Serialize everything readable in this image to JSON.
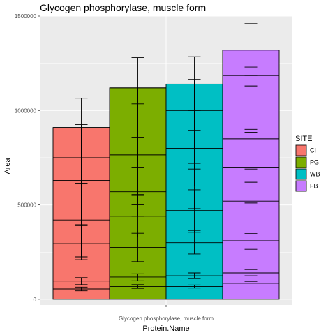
{
  "chart_data": {
    "type": "bar",
    "title": "Glycogen phosphorylase, muscle form",
    "xlabel": "Protein.Name",
    "ylabel": "Area",
    "categories": [
      "Glycogen phosphorylase, muscle form"
    ],
    "ylim": [
      -30000,
      1500000
    ],
    "yticks": [
      0,
      500000,
      1000000,
      1500000
    ],
    "ytick_labels": [
      "0",
      "500000",
      "1000000",
      "1500000"
    ],
    "grid": true,
    "position": "dodge",
    "legend": {
      "title": "SITE",
      "placement": "right"
    },
    "series": [
      {
        "name": "CI",
        "color": "#F8766D",
        "value": 910000,
        "segments": [
          55000,
          97000,
          295000,
          420000,
          630000,
          750000,
          910000
        ],
        "error_bars": [
          [
            45000,
            65000
          ],
          [
            78000,
            115000
          ],
          [
            210000,
            390000
          ],
          [
            225000,
            615000
          ],
          [
            395000,
            870000
          ],
          [
            430000,
            925000
          ],
          [
            750000,
            1065000
          ]
        ]
      },
      {
        "name": "PG",
        "color": "#7CAE00",
        "value": 1120000,
        "segments": [
          68000,
          118000,
          275000,
          440000,
          570000,
          765000,
          955000,
          1120000
        ],
        "error_bars": [
          [
            58000,
            78000
          ],
          [
            98000,
            135000
          ],
          [
            200000,
            350000
          ],
          [
            330000,
            550000
          ],
          [
            440000,
            700000
          ],
          [
            500000,
            1035000
          ],
          [
            555000,
            1125000
          ],
          [
            855000,
            1280000
          ]
        ]
      },
      {
        "name": "WB",
        "color": "#00BFC4",
        "value": 1140000,
        "segments": [
          68000,
          125000,
          300000,
          470000,
          600000,
          800000,
          1000000,
          1140000
        ],
        "error_bars": [
          [
            60000,
            76000
          ],
          [
            110000,
            140000
          ],
          [
            240000,
            365000
          ],
          [
            355000,
            580000
          ],
          [
            480000,
            720000
          ],
          [
            600000,
            1000000
          ],
          [
            690000,
            1165000
          ],
          [
            895000,
            1285000
          ]
        ]
      },
      {
        "name": "FB",
        "color": "#C77CFF",
        "value": 1320000,
        "segments": [
          85000,
          140000,
          310000,
          520000,
          700000,
          850000,
          1185000,
          1320000
        ],
        "error_bars": [
          [
            75000,
            95000
          ],
          [
            125000,
            158000
          ],
          [
            265000,
            348000
          ],
          [
            415000,
            620000
          ],
          [
            510000,
            885000
          ],
          [
            690000,
            900000
          ],
          [
            1130000,
            1230000
          ],
          [
            1185000,
            1460000
          ]
        ]
      }
    ]
  }
}
